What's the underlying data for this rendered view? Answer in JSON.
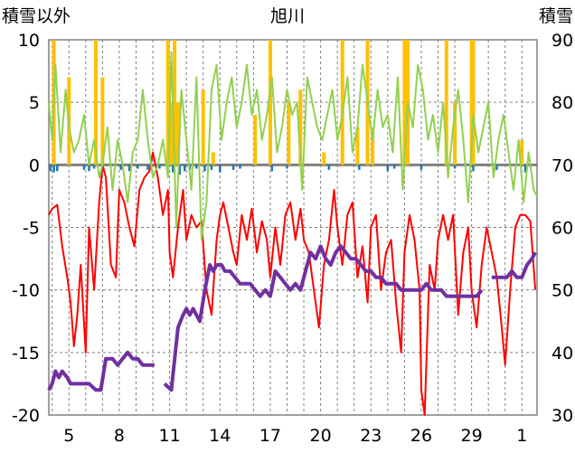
{
  "chart_data": {
    "type": "line",
    "title": "旭川",
    "left_axis_label": "積雪以外",
    "right_axis_label": "積雪",
    "left_ylim": [
      -20,
      10
    ],
    "left_ticks": [
      "10",
      "5",
      "0",
      "-5",
      "-10",
      "-15",
      "-20"
    ],
    "right_ylim": [
      30,
      90
    ],
    "right_ticks": [
      "90",
      "80",
      "70",
      "60",
      "50",
      "40",
      "30"
    ],
    "x_range": [
      3.8,
      2.2
    ],
    "x_ticks": [
      {
        "label": "5",
        "day": 5
      },
      {
        "label": "8",
        "day": 8
      },
      {
        "label": "11",
        "day": 11
      },
      {
        "label": "14",
        "day": 14
      },
      {
        "label": "17",
        "day": 17
      },
      {
        "label": "20",
        "day": 20
      },
      {
        "label": "23",
        "day": 23
      },
      {
        "label": "26",
        "day": 26
      },
      {
        "label": "29",
        "day": 29
      },
      {
        "label": "1",
        "day": 32
      }
    ],
    "grid": true,
    "colors": {
      "temperature": "#ff0000",
      "sunshine": "#92d050",
      "precipitation": "#ffc000",
      "wind": "#1f77b4",
      "snow_depth": "#7030a0",
      "zero_line": "#808080",
      "grid": "#808080"
    },
    "series": [
      {
        "key": "temperature",
        "axis": "left",
        "x": [
          3.8,
          4.0,
          4.3,
          4.6,
          4.9,
          5.1,
          5.3,
          5.5,
          5.7,
          6.0,
          6.2,
          6.5,
          6.8,
          7.0,
          7.2,
          7.5,
          7.8,
          8.0,
          8.3,
          8.6,
          8.9,
          9.2,
          9.5,
          9.8,
          10.0,
          10.3,
          10.6,
          10.9,
          11.0,
          11.2,
          11.5,
          11.8,
          12.0,
          12.3,
          12.6,
          12.9,
          13.2,
          13.5,
          13.8,
          14.0,
          14.2,
          14.5,
          14.8,
          15.0,
          15.3,
          15.6,
          15.9,
          16.2,
          16.5,
          16.8,
          17.0,
          17.3,
          17.6,
          17.9,
          18.2,
          18.5,
          18.8,
          19.0,
          19.3,
          19.6,
          19.9,
          20.2,
          20.5,
          20.8,
          21.0,
          21.3,
          21.6,
          21.9,
          22.2,
          22.5,
          22.8,
          23.0,
          23.3,
          23.6,
          23.9,
          24.2,
          24.5,
          24.8,
          25.0,
          25.3,
          25.6,
          25.9,
          26.0,
          26.2,
          26.5,
          26.8,
          27.0,
          27.3,
          27.6,
          27.9,
          28.2,
          28.5,
          28.8,
          29.0,
          29.3,
          29.6,
          29.9,
          30.2,
          30.5,
          30.8,
          31.0,
          31.3,
          31.6,
          31.9,
          32.2,
          32.5,
          32.8
        ],
        "y": [
          -4,
          -3.5,
          -3.2,
          -6.5,
          -9,
          -11,
          -14.5,
          -12,
          -8,
          -15,
          -5,
          -10,
          -3,
          0,
          -1,
          -8,
          -9,
          -2,
          -3,
          -5,
          -6.5,
          -2,
          -1,
          -0.5,
          1,
          -1,
          -4,
          -2,
          -7,
          -9,
          -5,
          -2,
          -6,
          -4,
          -5,
          -4.5,
          -10,
          -12,
          -6,
          -4,
          -3,
          -5,
          -7,
          -8,
          -4,
          -6,
          -3.5,
          -7,
          -4.5,
          -6,
          -9,
          -5,
          -8,
          -4,
          -3,
          -6,
          -3.5,
          -6,
          -7,
          -10,
          -13,
          -8,
          -6,
          -2,
          -5,
          -8,
          -4,
          -3,
          -9,
          -6.5,
          -11,
          -5,
          -4,
          -10,
          -7,
          -6,
          -11,
          -15,
          -7,
          -4,
          -6,
          -10,
          -18,
          -20,
          -8,
          -10,
          -6,
          -4,
          -6,
          -4,
          -12,
          -7,
          -5,
          -10,
          -13,
          -8,
          -5,
          -7,
          -9,
          -13,
          -16,
          -10,
          -5,
          -4,
          -4,
          -4.5,
          -10
        ]
      },
      {
        "key": "sunshine",
        "axis": "left",
        "x": [
          3.8,
          4.0,
          4.2,
          4.5,
          4.8,
          5.0,
          5.3,
          5.6,
          5.9,
          6.2,
          6.5,
          6.8,
          7.0,
          7.3,
          7.6,
          7.9,
          8.2,
          8.5,
          8.8,
          9.1,
          9.4,
          9.7,
          10.0,
          10.3,
          10.6,
          10.9,
          11.1,
          11.4,
          11.7,
          12.0,
          12.3,
          12.6,
          12.9,
          13.2,
          13.5,
          13.8,
          14.1,
          14.4,
          14.7,
          15.0,
          15.3,
          15.6,
          15.9,
          16.2,
          16.5,
          16.8,
          17.1,
          17.4,
          17.7,
          18.0,
          18.3,
          18.6,
          18.9,
          19.2,
          19.5,
          19.8,
          20.1,
          20.4,
          20.7,
          21.0,
          21.3,
          21.6,
          21.9,
          22.2,
          22.5,
          22.8,
          23.1,
          23.4,
          23.7,
          24.0,
          24.3,
          24.6,
          24.9,
          25.2,
          25.5,
          25.8,
          26.1,
          26.4,
          26.7,
          27.0,
          27.3,
          27.6,
          27.9,
          28.2,
          28.5,
          28.8,
          29.1,
          29.4,
          29.7,
          30.0,
          30.3,
          30.6,
          30.9,
          31.2,
          31.5,
          31.8,
          32.1,
          32.4,
          32.7,
          32.9
        ],
        "y": [
          5,
          2,
          8,
          1,
          6,
          3,
          1,
          2,
          4,
          0,
          2,
          -1,
          0,
          3,
          -2,
          2,
          0,
          -3,
          1,
          2,
          6,
          2,
          -1,
          0,
          2,
          -1,
          9,
          -5,
          6,
          2,
          -2,
          7,
          -6,
          -3,
          6,
          8,
          2,
          5,
          7,
          3,
          5,
          8,
          4,
          6,
          2,
          4,
          7,
          1,
          3,
          6,
          4,
          5,
          -2,
          7,
          5,
          3,
          2,
          4,
          6,
          2,
          4,
          7,
          1,
          3,
          8,
          5,
          2,
          6,
          3,
          4,
          1,
          7,
          -2,
          5,
          3,
          8,
          6,
          2,
          4,
          1,
          5,
          -1,
          3,
          6,
          2,
          -3,
          4,
          1,
          3,
          5,
          -1,
          2,
          4,
          1,
          -2,
          2,
          -3,
          1,
          -2,
          -2.5
        ]
      },
      {
        "key": "snow_depth",
        "axis": "right",
        "x": [
          3.8,
          4.0,
          4.2,
          4.4,
          4.6,
          4.9,
          5.1,
          5.4,
          5.8,
          6.2,
          6.6,
          6.9,
          7.2,
          7.6,
          7.9,
          8.2,
          8.5,
          8.8,
          9.1,
          9.4,
          9.8,
          10.1,
          10.4,
          10.7,
          11.1,
          11.3,
          11.5,
          11.8,
          12.0,
          12.2,
          12.4,
          12.6,
          12.8,
          13.1,
          13.4,
          13.6,
          13.8,
          14.1,
          14.3,
          14.6,
          14.9,
          15.2,
          15.5,
          15.8,
          16.1,
          16.4,
          16.7,
          17.0,
          17.3,
          17.6,
          17.9,
          18.2,
          18.5,
          18.8,
          19.1,
          19.4,
          19.7,
          20.0,
          20.3,
          20.6,
          20.9,
          21.2,
          21.5,
          21.8,
          22.1,
          22.4,
          22.7,
          23.0,
          23.3,
          23.6,
          23.9,
          24.2,
          24.5,
          24.8,
          25.1,
          25.4,
          25.7,
          26.0,
          26.3,
          26.6,
          26.9,
          27.2,
          27.5,
          27.8,
          28.1,
          28.4,
          28.7,
          29.0,
          29.3,
          29.6,
          29.9,
          30.2,
          30.5,
          30.8,
          31.1,
          31.4,
          31.7,
          32.0,
          32.3,
          32.6,
          32.8
        ],
        "y": [
          34,
          35,
          37,
          36,
          37,
          36,
          35,
          35,
          35,
          35,
          34,
          34,
          39,
          39,
          38,
          39,
          40,
          39,
          39,
          38,
          38,
          38,
          null,
          35,
          34,
          39,
          44,
          46,
          47,
          46,
          47,
          46,
          45,
          50,
          54,
          53,
          54,
          54,
          53,
          53,
          52,
          51,
          51,
          51,
          50,
          49,
          50,
          49,
          53,
          52,
          51,
          50,
          51,
          50,
          53,
          56,
          55,
          57,
          55,
          54,
          56,
          57,
          56,
          55,
          55,
          54,
          53,
          53,
          52,
          52,
          51,
          51,
          51,
          50,
          50,
          50,
          50,
          50,
          51,
          50,
          50,
          50,
          49,
          49,
          49,
          49,
          49,
          49,
          49,
          50,
          null,
          52,
          52,
          52,
          52,
          53,
          52,
          52,
          54,
          55,
          56
        ]
      }
    ],
    "bars": [
      {
        "key": "precipitation",
        "axis": "left",
        "x": [
          4.1,
          5.0,
          6.6,
          7.0,
          10.9,
          11.1,
          11.3,
          11.5,
          13.0,
          13.6,
          16.1,
          17.0,
          18.1,
          18.8,
          20.2,
          21.3,
          22.2,
          22.8,
          23.1,
          25.0,
          25.2,
          27.5,
          28.0,
          29.0,
          29.1,
          32.0
        ],
        "y": [
          10,
          7,
          10,
          7,
          10,
          5,
          10,
          5,
          6,
          1,
          4,
          10,
          5,
          6,
          1,
          10,
          3,
          10,
          3,
          10,
          10,
          10,
          5,
          10,
          10,
          2
        ]
      },
      {
        "key": "wind",
        "axis": "left",
        "x": [
          3.9,
          4.1,
          4.3,
          5.9,
          6.2,
          6.5,
          8.1,
          8.6,
          9.1,
          9.7,
          10.4,
          11.2,
          11.6,
          11.9,
          12.2,
          12.6,
          13.1,
          13.5,
          14.0,
          14.8,
          15.2,
          17.1,
          18.0,
          20.5,
          22.3,
          24.0,
          24.4,
          26.0,
          28.0,
          29.1,
          30.5,
          32.2
        ],
        "y": [
          -0.5,
          -0.6,
          -0.5,
          -0.4,
          -0.5,
          -0.3,
          -0.4,
          -0.5,
          -0.3,
          -0.4,
          -0.3,
          -0.6,
          -0.8,
          -0.5,
          -0.4,
          -0.3,
          -0.5,
          -0.4,
          -0.6,
          -0.4,
          -0.3,
          -0.5,
          -0.3,
          -0.4,
          -0.4,
          -0.5,
          -0.3,
          -0.4,
          -0.3,
          -0.5,
          -0.4,
          -0.6
        ]
      }
    ]
  }
}
